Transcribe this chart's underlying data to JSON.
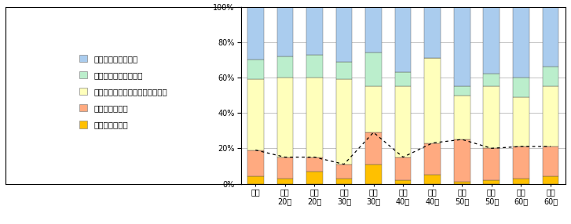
{
  "categories": [
    "全体",
    "男性\n20代",
    "女性\n20代",
    "男性\n30代",
    "女性\n30代",
    "男性\n40代",
    "女性\n40代",
    "男性\n50代",
    "女性\n50代",
    "男性\n60代",
    "女性\n60代"
  ],
  "series_order": [
    "ぜひ利用したい",
    "まあ利用したい",
    "どちらともいえない・わからない",
    "あまり利用したくない",
    "全く利用したくない"
  ],
  "legend_labels": [
    "全く利用したくない",
    "あまり利用したくない",
    "どちらともいえない・わからない",
    "まあ利用したい",
    "ぜひ利用したい"
  ],
  "series": {
    "ぜひ利用したい": [
      4,
      3,
      7,
      3,
      11,
      2,
      5,
      1,
      2,
      3,
      4
    ],
    "まあ利用したい": [
      15,
      12,
      8,
      8,
      18,
      13,
      18,
      24,
      18,
      18,
      17
    ],
    "どちらともいえない・わからない": [
      40,
      45,
      45,
      48,
      26,
      40,
      48,
      25,
      35,
      28,
      34
    ],
    "あまり利用したくない": [
      11,
      12,
      13,
      10,
      19,
      8,
      0,
      5,
      7,
      11,
      11
    ],
    "全く利用したくない": [
      30,
      28,
      27,
      31,
      26,
      37,
      29,
      45,
      38,
      40,
      34
    ]
  },
  "colors": {
    "ぜひ利用したい": "#FFC000",
    "まあ利用したい": "#FFAA80",
    "どちらともいえない・わからない": "#FFFFBB",
    "あまり利用したくない": "#BBEECC",
    "全く利用したくない": "#AACCEE"
  },
  "dashed_y": [
    19,
    15,
    15,
    11,
    29,
    15,
    23,
    25,
    20,
    21,
    21
  ],
  "background_color": "#FFFFFF",
  "bar_width": 0.55,
  "figsize": [
    7.27,
    2.86
  ],
  "dpi": 100
}
